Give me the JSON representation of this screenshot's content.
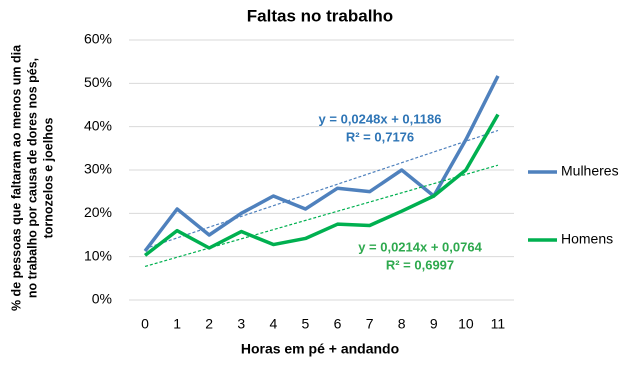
{
  "chart_data": {
    "type": "line",
    "title": "Faltas no trabalho",
    "xlabel": "Horas em pé + andando",
    "ylabel": [
      "% de pessoas que faltaram ao menos um dia",
      "no trabalho por causa de dores nos pés,",
      "tornozelos e joelhos"
    ],
    "x": [
      0,
      1,
      2,
      3,
      4,
      5,
      6,
      7,
      8,
      9,
      10,
      11
    ],
    "xlim": [
      -0.5,
      11.5
    ],
    "xticks": [
      0,
      1,
      2,
      3,
      4,
      5,
      6,
      7,
      8,
      9,
      10,
      11
    ],
    "ylim": [
      0,
      60
    ],
    "yticks": [
      {
        "value": 0,
        "label": "0%"
      },
      {
        "value": 10,
        "label": "10%"
      },
      {
        "value": 20,
        "label": "20%"
      },
      {
        "value": 30,
        "label": "30%"
      },
      {
        "value": 40,
        "label": "40%"
      },
      {
        "value": 50,
        "label": "50%"
      },
      {
        "value": 60,
        "label": "60%"
      }
    ],
    "grid": true,
    "legend": "right",
    "series": [
      {
        "name": "Mulheres",
        "color": "#4f81bd",
        "values": [
          11.3,
          21,
          15,
          20,
          24,
          21,
          25.8,
          25,
          30,
          24,
          37,
          51.7
        ],
        "trendline": {
          "equation": "y = 0,0248x + 0,1186",
          "r2": "R² = 0,7176",
          "color": "#2e75b6"
        }
      },
      {
        "name": "Homens",
        "color": "#00b050",
        "values": [
          10.3,
          16,
          12,
          15.8,
          12.8,
          14.2,
          17.5,
          17.2,
          20.5,
          24,
          30,
          42.8
        ],
        "trendline": {
          "equation": "y = 0,0214x + 0,0764",
          "r2": "R² = 0,6997",
          "color": "#2ea94e"
        }
      }
    ]
  }
}
